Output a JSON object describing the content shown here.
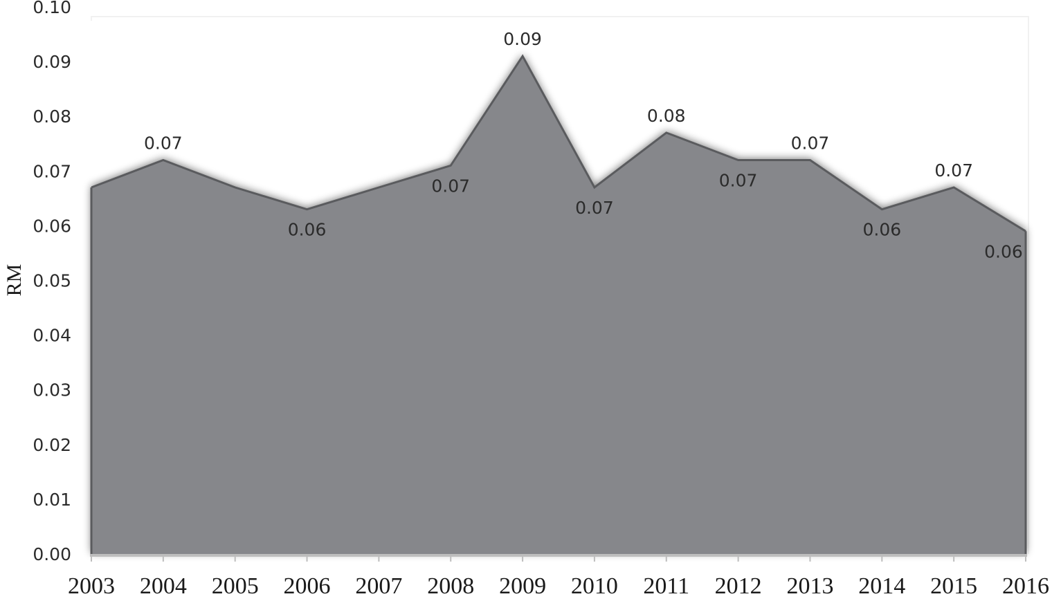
{
  "chart_data": {
    "type": "area",
    "title": "",
    "xlabel": "",
    "ylabel": "RM",
    "categories": [
      "2003",
      "2004",
      "2005",
      "2006",
      "2007",
      "2008",
      "2009",
      "2010",
      "2011",
      "2012",
      "2013",
      "2014",
      "2015",
      "2016"
    ],
    "series": [
      {
        "name": "RM",
        "values": [
          0.067,
          0.072,
          0.067,
          0.063,
          0.067,
          0.071,
          0.091,
          0.067,
          0.077,
          0.072,
          0.072,
          0.063,
          0.067,
          0.059
        ]
      }
    ],
    "data_labels": [
      {
        "index": 1,
        "text": "0.07",
        "position": "above"
      },
      {
        "index": 3,
        "text": "0.06",
        "position": "below"
      },
      {
        "index": 5,
        "text": "0.07",
        "position": "below"
      },
      {
        "index": 6,
        "text": "0.09",
        "position": "above"
      },
      {
        "index": 7,
        "text": "0.07",
        "position": "below"
      },
      {
        "index": 8,
        "text": "0.08",
        "position": "above"
      },
      {
        "index": 9,
        "text": "0.07",
        "position": "below"
      },
      {
        "index": 10,
        "text": "0.07",
        "position": "above"
      },
      {
        "index": 11,
        "text": "0.06",
        "position": "below"
      },
      {
        "index": 12,
        "text": "0.07",
        "position": "above"
      },
      {
        "index": 13,
        "text": "0.06",
        "position": "below"
      }
    ],
    "yticks": [
      "0.00",
      "0.01",
      "0.02",
      "0.03",
      "0.04",
      "0.05",
      "0.06",
      "0.07",
      "0.08",
      "0.09",
      "0.10"
    ],
    "ylim": [
      0,
      0.1
    ],
    "grid": false,
    "legend": null,
    "colors": {
      "fill": "#86878b",
      "line": "#5a5b5e",
      "axis": "#bdbdbd"
    }
  }
}
